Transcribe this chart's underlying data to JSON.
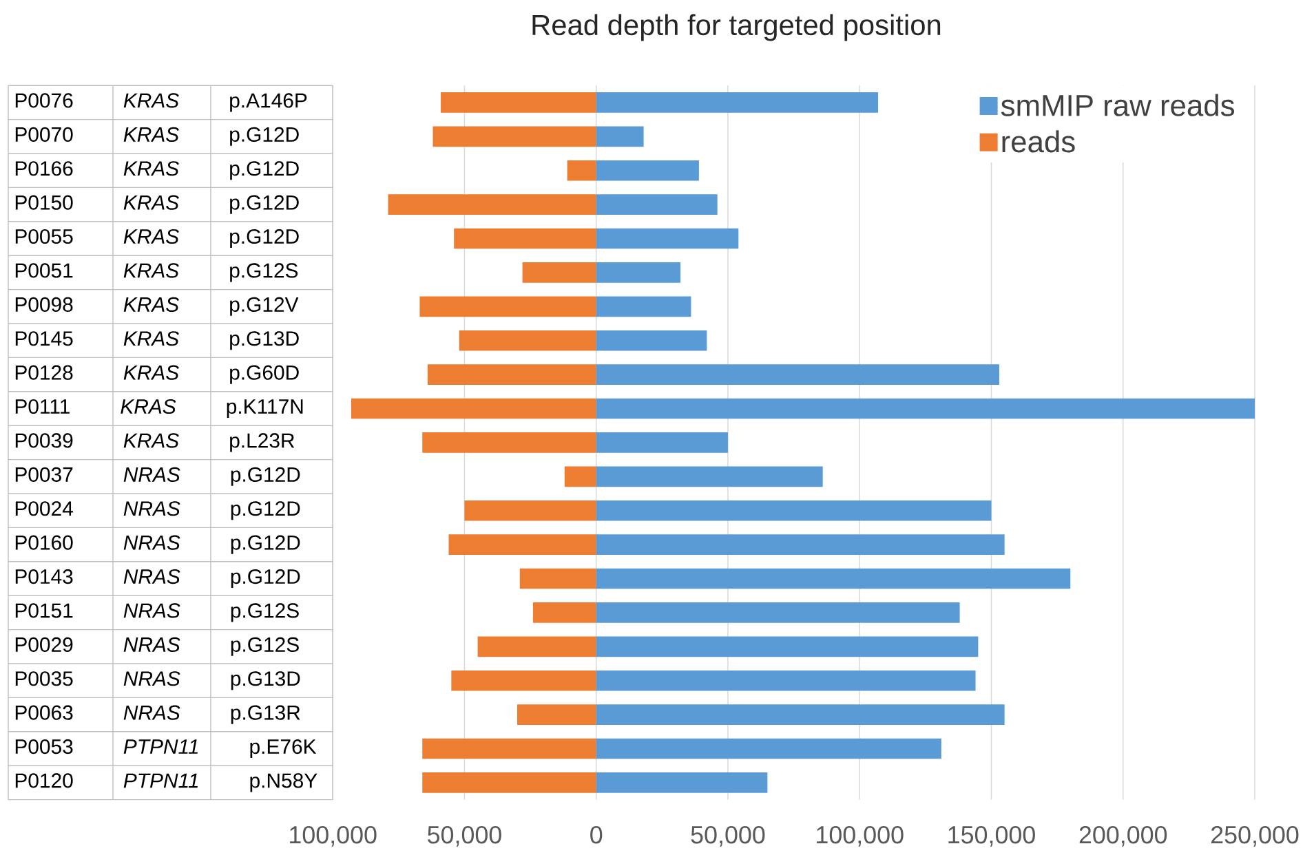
{
  "chart_data": {
    "type": "bar",
    "orientation": "horizontal",
    "stacked": true,
    "title": "Read depth for targeted position",
    "categories": [
      "P0076 *KRAS* p.A146P",
      "P0070 *KRAS* p.G12D",
      "P0166 *KRAS* p.G12D",
      "P0150 *KRAS* p.G12D",
      "P0055 *KRAS* p.G12D",
      "P0051 *KRAS* p.G12S",
      "P0098 *KRAS* p.G12V",
      "P0145 *KRAS* p.G13D",
      "P0128 *KRAS* p.G60D",
      "P0111 *KRAS* p.K117N",
      "P0039 *KRAS* p.L23R",
      "P0037 *NRAS* p.G12D",
      "P0024 *NRAS* p.G12D",
      "P0160 *NRAS* p.G12D",
      "P0143 *NRAS* p.G12D",
      "P0151 *NRAS* p.G12S",
      "P0029 *NRAS* p.G12S",
      "P0035 *NRAS* p.G13D",
      "P0063 *NRAS* p.G13R",
      "P0053 *PTPN11* p.E76K",
      "P0120 *PTPN11* p.N58Y"
    ],
    "series": [
      {
        "name": "smMIP raw reads",
        "color": "#5b9bd5",
        "values": [
          107000,
          18000,
          39000,
          46000,
          54000,
          32000,
          36000,
          42000,
          153000,
          250000,
          50000,
          86000,
          150000,
          155000,
          180000,
          138000,
          145000,
          144000,
          155000,
          131000,
          65000
        ]
      },
      {
        "name": "reads",
        "color": "#ed7d31",
        "values": [
          -59000,
          -62000,
          -11000,
          -79000,
          -54000,
          -28000,
          -67000,
          -52000,
          -64000,
          -93000,
          -66000,
          -12000,
          -50000,
          -56000,
          -29000,
          -24000,
          -45000,
          -55000,
          -30000,
          -66000,
          -66000
        ]
      }
    ],
    "xlim": [
      -100000,
      250000
    ],
    "xticks": [
      {
        "value": -100000,
        "label": "100,000"
      },
      {
        "value": -50000,
        "label": "50,000"
      },
      0,
      {
        "value": 50000,
        "label": "50,000"
      },
      {
        "value": 100000,
        "label": "100,000"
      },
      {
        "value": 150000,
        "label": "150,000"
      },
      {
        "value": 200000,
        "label": "200,000"
      },
      {
        "value": 250000,
        "label": "250,000"
      }
    ],
    "grid": "x",
    "legend": "top right"
  }
}
